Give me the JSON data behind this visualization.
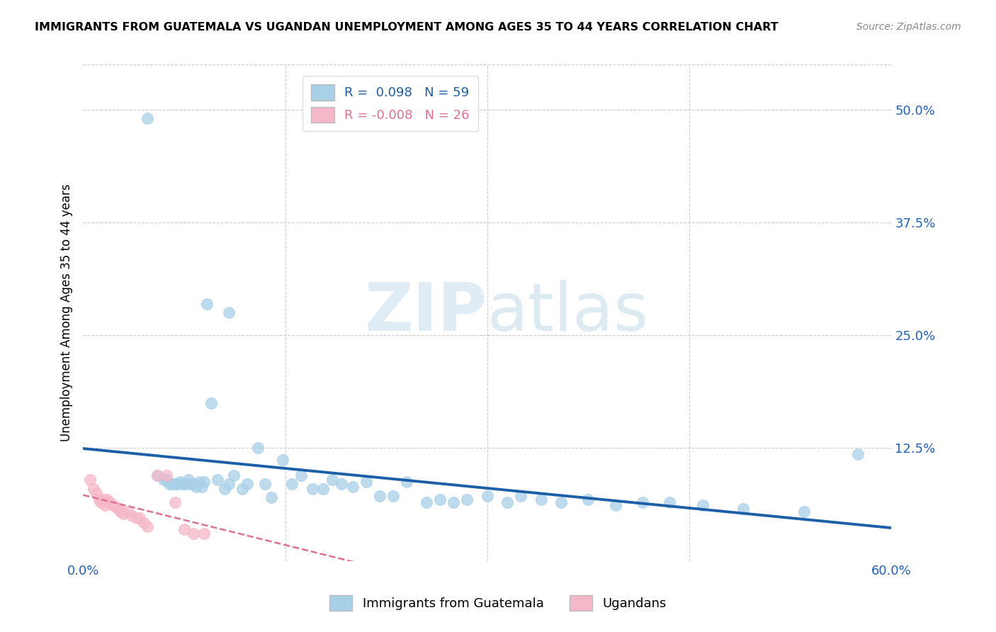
{
  "title": "IMMIGRANTS FROM GUATEMALA VS UGANDAN UNEMPLOYMENT AMONG AGES 35 TO 44 YEARS CORRELATION CHART",
  "source": "Source: ZipAtlas.com",
  "ylabel": "Unemployment Among Ages 35 to 44 years",
  "legend_labels": [
    "Immigrants from Guatemala",
    "Ugandans"
  ],
  "R_blue": 0.098,
  "N_blue": 59,
  "R_pink": -0.008,
  "N_pink": 26,
  "blue_color": "#a8d0e8",
  "pink_color": "#f5b8c8",
  "trend_blue_color": "#1a5fa8",
  "trend_pink_color": "#e07090",
  "xlim": [
    0.0,
    0.6
  ],
  "ylim": [
    0.0,
    0.55
  ],
  "right_yticks": [
    0.0,
    0.125,
    0.25,
    0.375,
    0.5
  ],
  "right_yticklabels": [
    "",
    "12.5%",
    "25.0%",
    "37.5%",
    "50.0%"
  ],
  "xticks": [
    0.0,
    0.15,
    0.3,
    0.45,
    0.6
  ],
  "xticklabels": [
    "0.0%",
    "",
    "",
    "",
    "60.0%"
  ],
  "blue_x": [
    0.048,
    0.092,
    0.108,
    0.055,
    0.06,
    0.062,
    0.064,
    0.066,
    0.068,
    0.07,
    0.072,
    0.074,
    0.076,
    0.078,
    0.08,
    0.082,
    0.084,
    0.086,
    0.088,
    0.09,
    0.095,
    0.1,
    0.105,
    0.108,
    0.112,
    0.118,
    0.122,
    0.13,
    0.135,
    0.14,
    0.148,
    0.155,
    0.162,
    0.17,
    0.178,
    0.185,
    0.192,
    0.2,
    0.21,
    0.22,
    0.23,
    0.24,
    0.255,
    0.265,
    0.275,
    0.285,
    0.3,
    0.315,
    0.325,
    0.34,
    0.355,
    0.375,
    0.395,
    0.415,
    0.435,
    0.46,
    0.49,
    0.535,
    0.575
  ],
  "blue_y": [
    0.49,
    0.285,
    0.275,
    0.095,
    0.09,
    0.09,
    0.085,
    0.085,
    0.085,
    0.085,
    0.088,
    0.085,
    0.085,
    0.09,
    0.085,
    0.085,
    0.082,
    0.088,
    0.082,
    0.088,
    0.175,
    0.09,
    0.08,
    0.085,
    0.095,
    0.08,
    0.085,
    0.125,
    0.085,
    0.07,
    0.112,
    0.085,
    0.095,
    0.08,
    0.08,
    0.09,
    0.085,
    0.082,
    0.088,
    0.072,
    0.072,
    0.088,
    0.065,
    0.068,
    0.065,
    0.068,
    0.072,
    0.065,
    0.072,
    0.068,
    0.065,
    0.068,
    0.062,
    0.065,
    0.065,
    0.062,
    0.058,
    0.055,
    0.118
  ],
  "pink_x": [
    0.005,
    0.008,
    0.01,
    0.012,
    0.013,
    0.015,
    0.016,
    0.018,
    0.02,
    0.022,
    0.024,
    0.026,
    0.028,
    0.03,
    0.033,
    0.036,
    0.04,
    0.042,
    0.045,
    0.048,
    0.055,
    0.062,
    0.068,
    0.075,
    0.082,
    0.09
  ],
  "pink_y": [
    0.09,
    0.08,
    0.075,
    0.068,
    0.065,
    0.068,
    0.062,
    0.068,
    0.065,
    0.062,
    0.06,
    0.058,
    0.055,
    0.052,
    0.055,
    0.05,
    0.048,
    0.048,
    0.042,
    0.038,
    0.095,
    0.095,
    0.065,
    0.035,
    0.03,
    0.03
  ],
  "watermark_zip": "ZIP",
  "watermark_atlas": "atlas",
  "background_color": "#ffffff",
  "grid_color": "#cccccc"
}
